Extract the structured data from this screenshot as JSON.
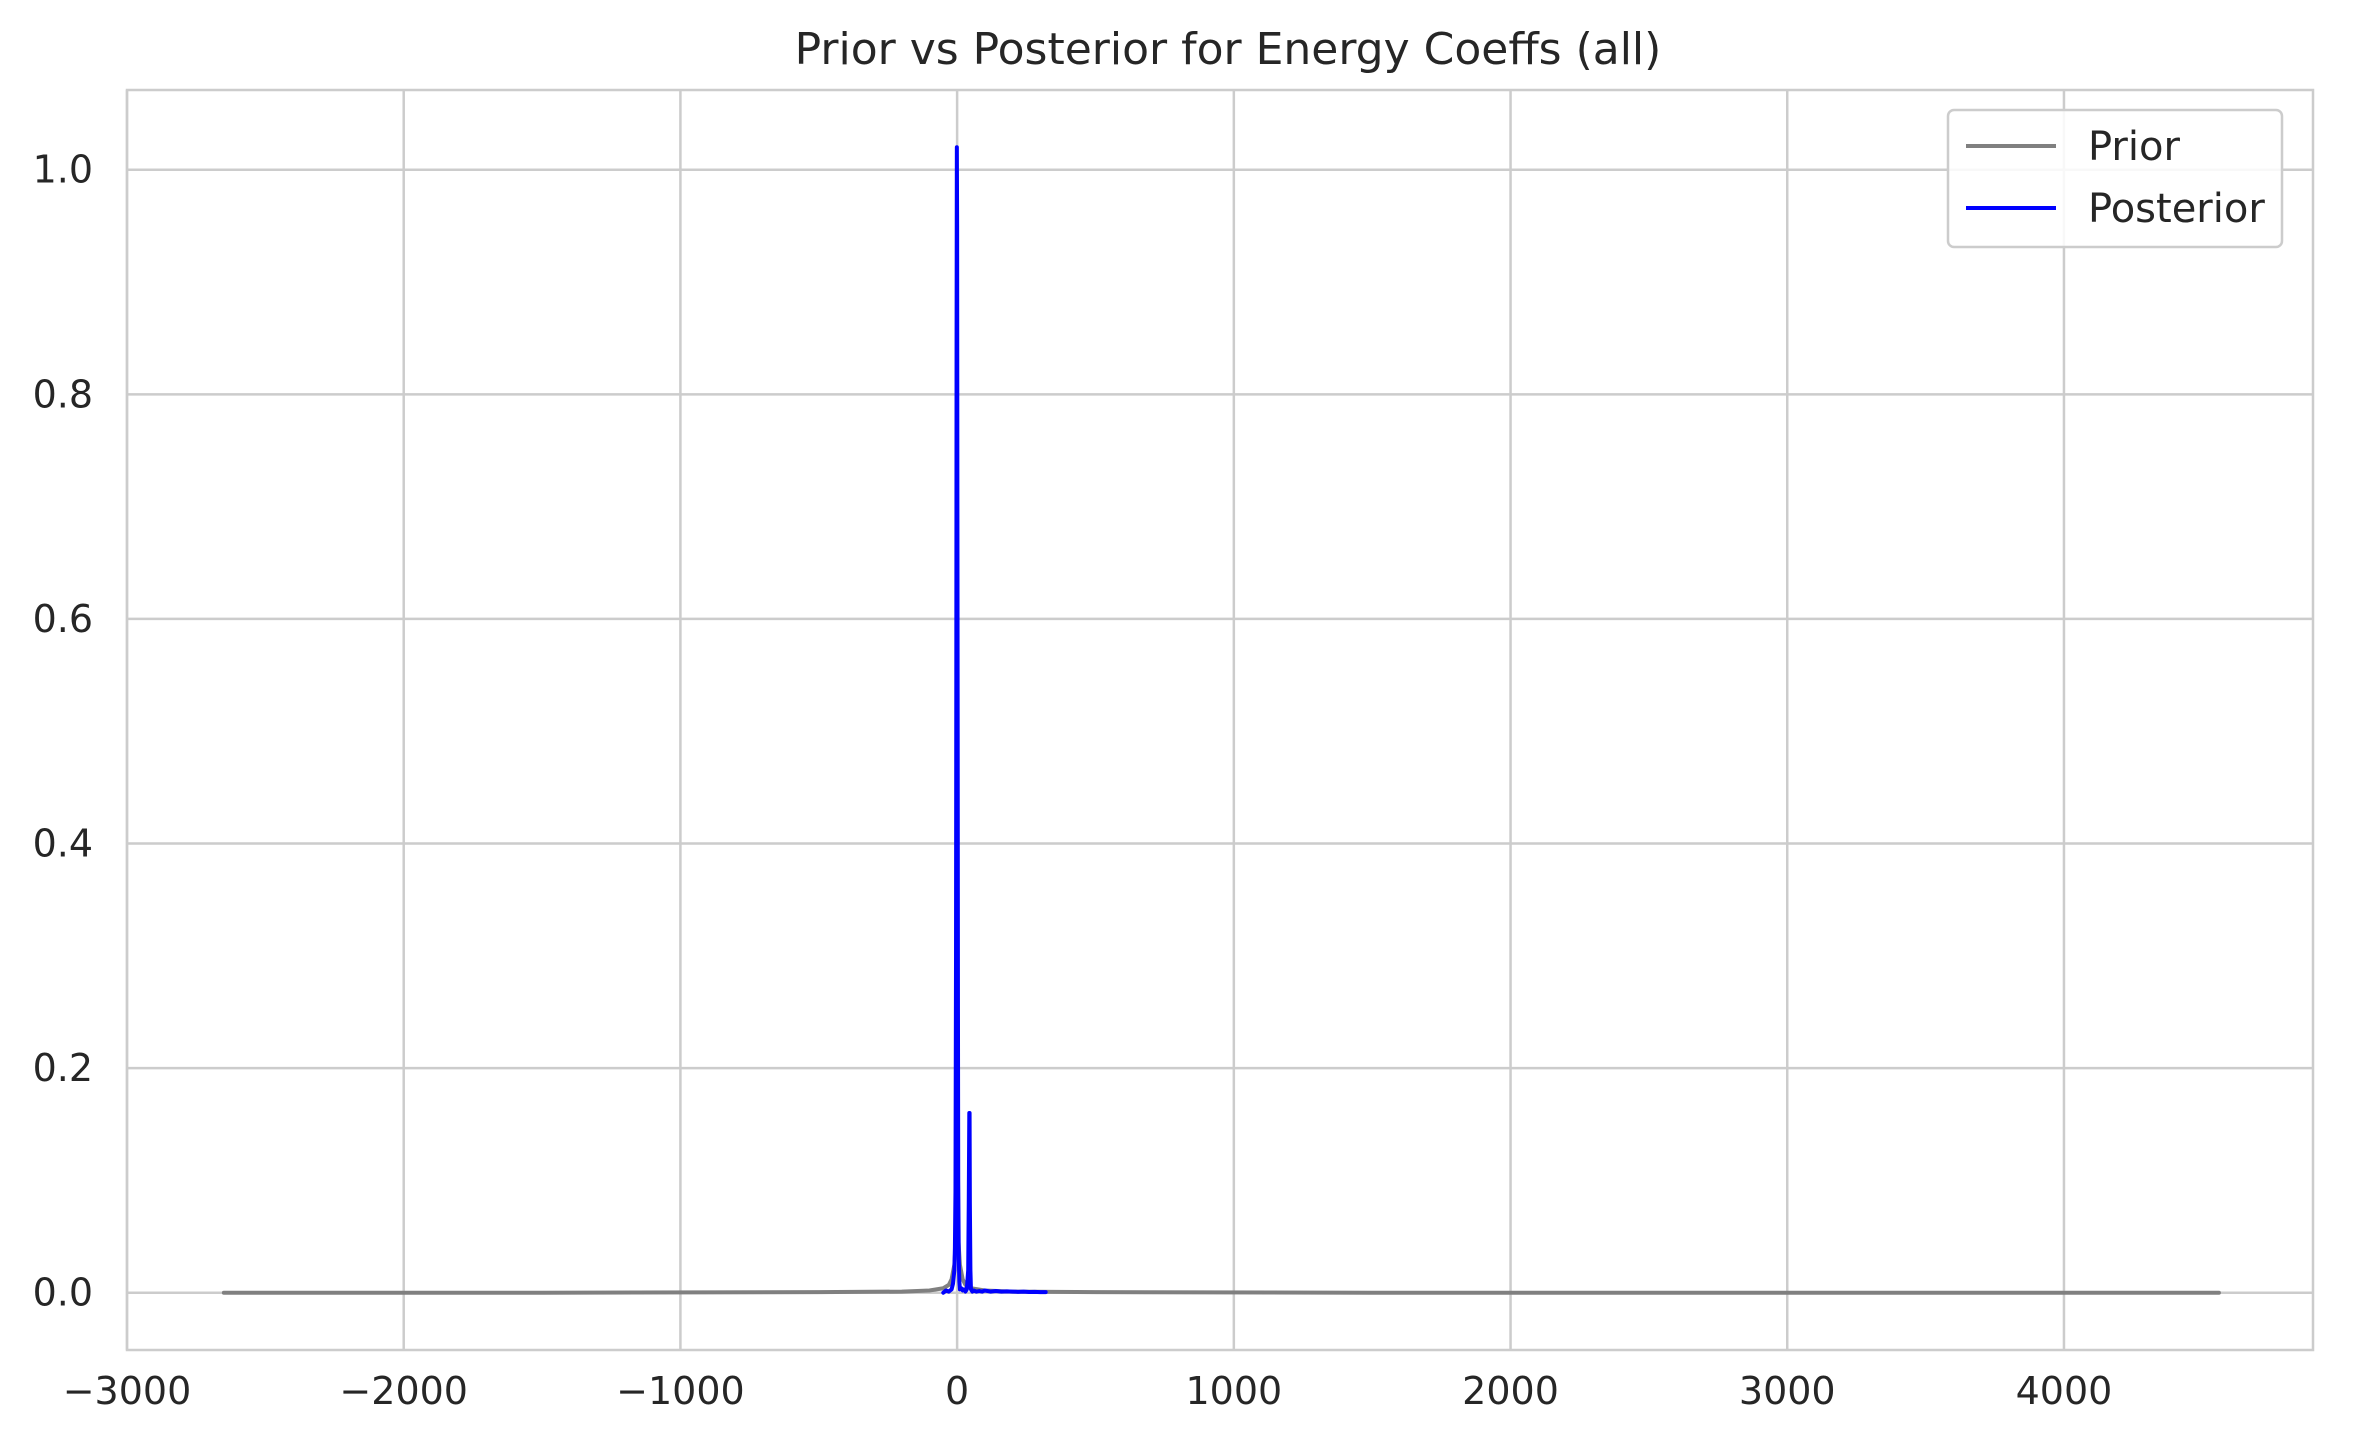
{
  "chart_data": {
    "type": "line",
    "title": "Prior vs Posterior for Energy Coeffs (all)",
    "xlabel": "",
    "ylabel": "",
    "xlim": [
      -3000,
      4900
    ],
    "ylim": [
      -0.051,
      1.071
    ],
    "xticks": [
      -3000,
      -2000,
      -1000,
      0,
      1000,
      2000,
      3000,
      4000
    ],
    "xtick_labels": [
      "−3000",
      "−2000",
      "−1000",
      "0",
      "1000",
      "2000",
      "3000",
      "4000"
    ],
    "yticks": [
      0.0,
      0.2,
      0.4,
      0.6,
      0.8,
      1.0
    ],
    "ytick_labels": [
      "0.0",
      "0.2",
      "0.4",
      "0.6",
      "0.8",
      "1.0"
    ],
    "grid": true,
    "legend_position": "top-right",
    "series": [
      {
        "name": "Prior",
        "color": "#808080",
        "x": [
          -2650,
          -1500,
          -500,
          -200,
          -100,
          -50,
          -30,
          -20,
          -10,
          -5,
          0,
          5,
          10,
          20,
          30,
          50,
          100,
          200,
          500,
          1500,
          3000,
          4560
        ],
        "y": [
          0.0,
          0.0,
          0.0005,
          0.001,
          0.002,
          0.004,
          0.007,
          0.012,
          0.025,
          0.045,
          0.06,
          0.045,
          0.025,
          0.012,
          0.007,
          0.004,
          0.002,
          0.001,
          0.0005,
          0.0,
          0.0,
          0.0
        ]
      },
      {
        "name": "Posterior",
        "color": "#0000ff",
        "x": [
          -50,
          -40,
          -30,
          -20,
          -15,
          -10,
          -8,
          -6,
          -4,
          -3,
          -2,
          -1,
          0,
          1,
          2,
          3,
          4,
          6,
          8,
          10,
          15,
          20,
          25,
          30,
          35,
          40,
          42,
          44,
          45,
          46,
          48,
          50,
          55,
          60,
          70,
          80,
          90,
          100,
          120,
          140,
          160,
          180,
          200,
          220,
          240,
          260,
          280,
          300,
          320
        ],
        "y": [
          0.0,
          0.002,
          0.001,
          0.003,
          0.008,
          0.02,
          0.04,
          0.09,
          0.3,
          0.55,
          0.85,
          1.02,
          0.95,
          0.7,
          0.5,
          0.25,
          0.1,
          0.03,
          0.01,
          0.003,
          0.004,
          0.002,
          0.003,
          0.001,
          0.003,
          0.02,
          0.08,
          0.16,
          0.16,
          0.08,
          0.02,
          0.003,
          0.001,
          0.002,
          0.001,
          0.0015,
          0.001,
          0.002,
          0.001,
          0.0015,
          0.001,
          0.0012,
          0.001,
          0.0008,
          0.001,
          0.0006,
          0.0008,
          0.0005,
          0.0005
        ]
      }
    ]
  }
}
